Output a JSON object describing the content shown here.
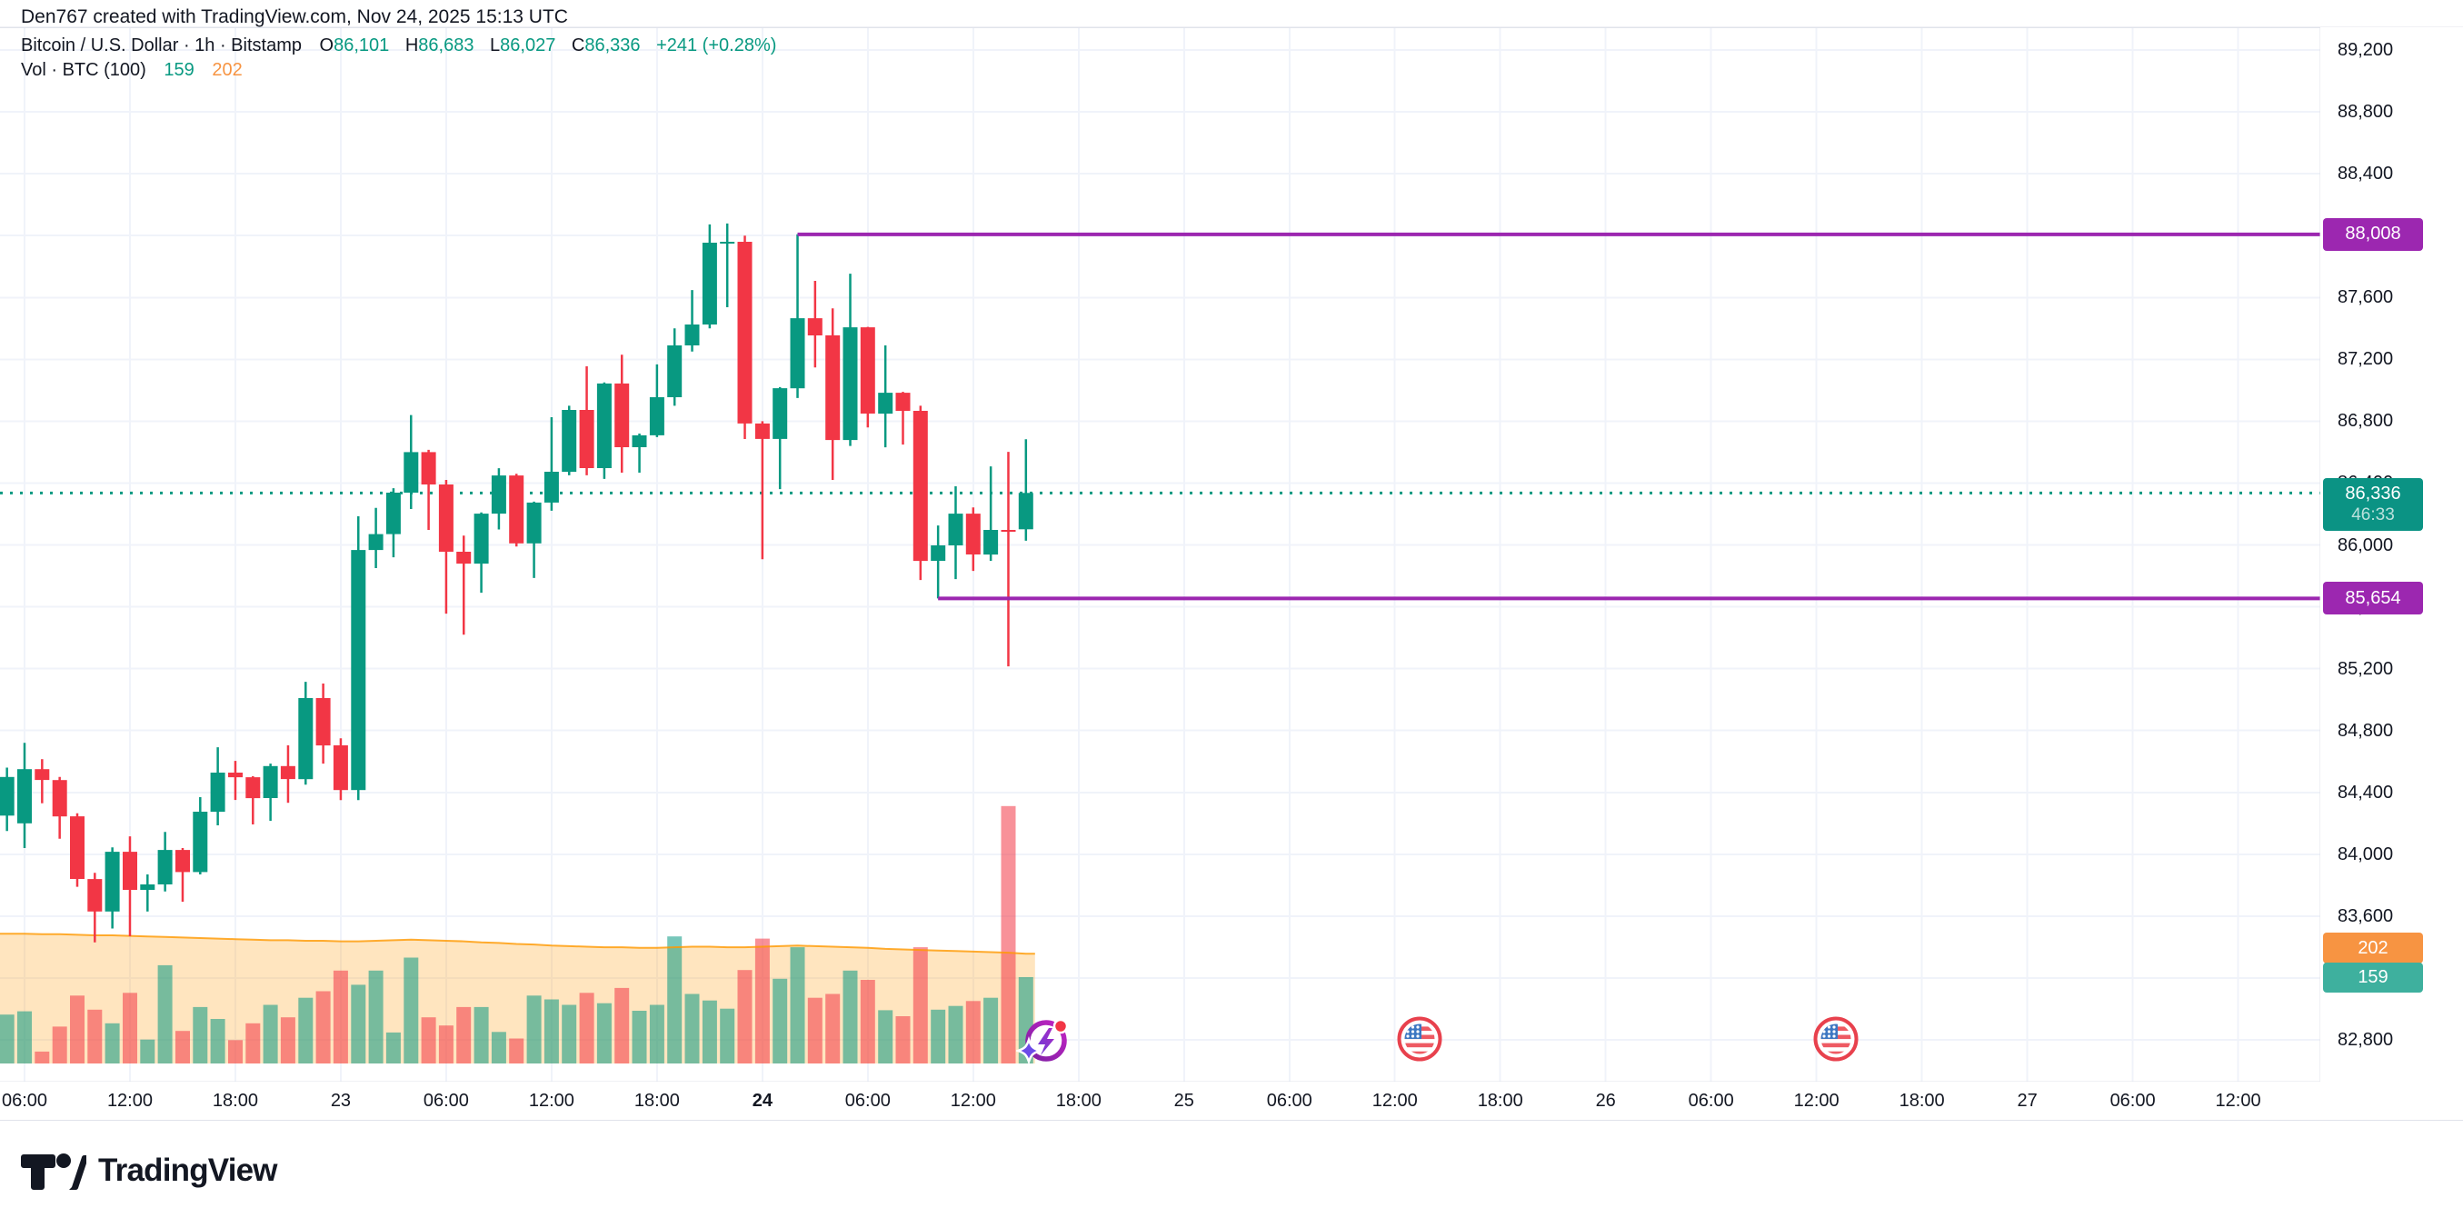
{
  "title": "Den767 created with TradingView.com, Nov 24, 2025 15:13 UTC",
  "legend": {
    "symbol_line": "Bitcoin / U.S. Dollar · 1h · Bitstamp",
    "o_label": "O",
    "o_value": "86,101",
    "h_label": "H",
    "h_value": "86,683",
    "l_label": "L",
    "l_value": "86,027",
    "c_label": "C",
    "c_value": "86,336",
    "change": "+241 (+0.28%)",
    "vol_label": "Vol · BTC (100)",
    "vol_value": "159",
    "vol_ma_value": "202"
  },
  "axis_tags": {
    "resistance": "88,008",
    "support": "85,654",
    "last_price": "86,336",
    "countdown": "46:33",
    "vol_ma": "202",
    "vol": "159"
  },
  "price_axis": {
    "ticks": [
      {
        "label": "89,200",
        "value": 89200
      },
      {
        "label": "88,800",
        "value": 88800
      },
      {
        "label": "88,400",
        "value": 88400
      },
      {
        "label": "88,000",
        "value": 88000
      },
      {
        "label": "87,600",
        "value": 87600
      },
      {
        "label": "87,200",
        "value": 87200
      },
      {
        "label": "86,800",
        "value": 86800
      },
      {
        "label": "86,400",
        "value": 86400
      },
      {
        "label": "86,000",
        "value": 86000
      },
      {
        "label": "85,600",
        "value": 85600
      },
      {
        "label": "85,200",
        "value": 85200
      },
      {
        "label": "84,800",
        "value": 84800
      },
      {
        "label": "84,400",
        "value": 84400
      },
      {
        "label": "84,000",
        "value": 84000
      },
      {
        "label": "83,600",
        "value": 83600
      },
      {
        "label": "83,200",
        "value": 83200
      },
      {
        "label": "82,800",
        "value": 82800
      }
    ]
  },
  "time_axis": {
    "ticks": [
      {
        "label": "06:00",
        "hour": 0,
        "bold": false
      },
      {
        "label": "12:00",
        "hour": 6,
        "bold": false
      },
      {
        "label": "18:00",
        "hour": 12,
        "bold": false
      },
      {
        "label": "23",
        "hour": 18,
        "bold": false
      },
      {
        "label": "06:00",
        "hour": 24,
        "bold": false
      },
      {
        "label": "12:00",
        "hour": 30,
        "bold": false
      },
      {
        "label": "18:00",
        "hour": 36,
        "bold": false
      },
      {
        "label": "24",
        "hour": 42,
        "bold": true
      },
      {
        "label": "06:00",
        "hour": 48,
        "bold": false
      },
      {
        "label": "12:00",
        "hour": 54,
        "bold": false
      },
      {
        "label": "18:00",
        "hour": 60,
        "bold": false
      },
      {
        "label": "25",
        "hour": 66,
        "bold": false
      },
      {
        "label": "06:00",
        "hour": 72,
        "bold": false
      },
      {
        "label": "12:00",
        "hour": 78,
        "bold": false
      },
      {
        "label": "18:00",
        "hour": 84,
        "bold": false
      },
      {
        "label": "26",
        "hour": 90,
        "bold": false
      },
      {
        "label": "06:00",
        "hour": 96,
        "bold": false
      },
      {
        "label": "12:00",
        "hour": 102,
        "bold": false
      },
      {
        "label": "18:00",
        "hour": 108,
        "bold": false
      },
      {
        "label": "27",
        "hour": 114,
        "bold": false
      },
      {
        "label": "06:00",
        "hour": 120,
        "bold": false
      },
      {
        "label": "12:00",
        "hour": 126,
        "bold": false
      }
    ]
  },
  "chart_data": {
    "type": "candlestick",
    "title": "Bitcoin / U.S. Dollar",
    "interval": "1h",
    "exchange": "Bitstamp",
    "start": "Nov 22 2025 05:00 UTC",
    "note": "one candle per hour; first candle is half-clipped at left edge",
    "first_hour_offset": -1,
    "ohlc": [
      [
        84250,
        84560,
        84150,
        84500
      ],
      [
        84200,
        84720,
        84040,
        84550
      ],
      [
        84550,
        84615,
        84330,
        84480
      ],
      [
        84480,
        84500,
        84100,
        84245
      ],
      [
        84245,
        84265,
        83790,
        83840
      ],
      [
        83840,
        83880,
        83430,
        83630
      ],
      [
        83630,
        84045,
        83520,
        84016
      ],
      [
        84016,
        84116,
        83470,
        83770
      ],
      [
        83770,
        83870,
        83630,
        83805
      ],
      [
        83805,
        84145,
        83760,
        84028
      ],
      [
        84028,
        84040,
        83693,
        83885
      ],
      [
        83885,
        84369,
        83870,
        84275
      ],
      [
        84275,
        84692,
        84187,
        84528
      ],
      [
        84528,
        84604,
        84351,
        84498
      ],
      [
        84498,
        84505,
        84193,
        84363
      ],
      [
        84363,
        84586,
        84216,
        84570
      ],
      [
        84570,
        84704,
        84333,
        84486
      ],
      [
        84486,
        85115,
        84450,
        85010
      ],
      [
        85010,
        85104,
        84586,
        84704
      ],
      [
        84704,
        84750,
        84350,
        84415
      ],
      [
        84415,
        86185,
        84350,
        85967
      ],
      [
        85967,
        86240,
        85850,
        86070
      ],
      [
        86070,
        86367,
        85920,
        86338
      ],
      [
        86338,
        86840,
        86232,
        86600
      ],
      [
        86600,
        86615,
        86097,
        86391
      ],
      [
        86391,
        86420,
        85556,
        85956
      ],
      [
        85956,
        86060,
        85420,
        85879
      ],
      [
        85879,
        86210,
        85691,
        86202
      ],
      [
        86202,
        86496,
        86100,
        86449
      ],
      [
        86449,
        86460,
        85990,
        86010
      ],
      [
        86010,
        86280,
        85786,
        86274
      ],
      [
        86274,
        86826,
        86221,
        86473
      ],
      [
        86473,
        86900,
        86450,
        86873
      ],
      [
        86873,
        87155,
        86450,
        86497
      ],
      [
        86497,
        87050,
        86427,
        87044
      ],
      [
        87044,
        87230,
        86467,
        86632
      ],
      [
        86632,
        86720,
        86467,
        86709
      ],
      [
        86709,
        87167,
        86697,
        86955
      ],
      [
        86955,
        87400,
        86900,
        87290
      ],
      [
        87290,
        87648,
        87250,
        87425
      ],
      [
        87425,
        88072,
        87400,
        87954
      ],
      [
        87954,
        88078,
        87537,
        87960
      ],
      [
        87960,
        88000,
        86685,
        86785
      ],
      [
        86785,
        86800,
        85907,
        86685
      ],
      [
        86685,
        87020,
        86361,
        87013
      ],
      [
        87013,
        88008,
        86950,
        87466
      ],
      [
        87466,
        87707,
        87148,
        87355
      ],
      [
        87355,
        87530,
        86420,
        86678
      ],
      [
        86678,
        87754,
        86640,
        87407
      ],
      [
        87407,
        87410,
        86760,
        86849
      ],
      [
        86849,
        87290,
        86631,
        86984
      ],
      [
        86984,
        86990,
        86649,
        86867
      ],
      [
        86867,
        86900,
        85773,
        85897
      ],
      [
        85897,
        86126,
        85654,
        85997
      ],
      [
        85997,
        86379,
        85779,
        86202
      ],
      [
        86202,
        86243,
        85832,
        85938
      ],
      [
        85938,
        86508,
        85897,
        86097
      ],
      [
        86097,
        86602,
        85215,
        86085
      ],
      [
        86101,
        86683,
        86027,
        86336
      ]
    ],
    "volumes": [
      90,
      96,
      22,
      68,
      125,
      99,
      74,
      130,
      44,
      181,
      60,
      104,
      82,
      43,
      74,
      108,
      85,
      121,
      133,
      171,
      145,
      171,
      57,
      195,
      85,
      70,
      104,
      104,
      58,
      46,
      125,
      118,
      108,
      130,
      111,
      139,
      97,
      108,
      234,
      128,
      116,
      101,
      172,
      230,
      156,
      214,
      121,
      128,
      171,
      154,
      98,
      87,
      214,
      99,
      106,
      115,
      121,
      474,
      159
    ],
    "volume_ma": [
      239,
      239,
      238,
      238,
      237,
      236,
      236,
      235,
      234,
      233,
      232,
      231,
      230,
      229,
      228,
      227,
      227,
      226,
      226,
      225,
      225,
      226,
      227,
      228,
      227,
      226,
      225,
      223,
      222,
      220,
      219,
      217,
      216,
      215,
      214,
      214,
      213,
      213,
      214,
      215,
      215,
      214,
      214,
      215,
      216,
      217,
      216,
      215,
      214,
      213,
      211,
      210,
      209,
      208,
      207,
      206,
      205,
      204,
      202
    ],
    "levels": [
      {
        "price": 88008,
        "label": "88,008",
        "from_candle": 45
      },
      {
        "price": 85654,
        "label": "85,654",
        "from_candle": 53
      }
    ],
    "last_price": 86336,
    "last_change": 241,
    "last_change_pct": 0.28,
    "current_volume": 159,
    "current_volume_ma": 202,
    "countdown": "46:33",
    "ylim": [
      82480,
      89350
    ],
    "grid": true,
    "events": [
      {
        "type": "sparkle",
        "hour": 58.1
      },
      {
        "type": "us-flag",
        "hour": 79.4
      },
      {
        "type": "us-flag",
        "hour": 103.1
      }
    ]
  },
  "colors": {
    "up": "#089981",
    "down": "#F23645",
    "vol_up": "rgba(8,153,129,0.55)",
    "vol_down": "rgba(242,54,69,0.55)",
    "ma_fill": "rgba(255,152,0,0.25)",
    "ma_line": "rgba(255,152,0,0.8)",
    "level": "#9C27B0",
    "last_line": "#089981",
    "grid": "#F0F3FA",
    "border": "#E0E3EB",
    "text": "#131722",
    "tag_last_bg": "#0B9384",
    "tag_vol_bg": "#3EB09E",
    "tag_volma_bg": "#F79442"
  },
  "logo": {
    "brand": "TradingView"
  }
}
